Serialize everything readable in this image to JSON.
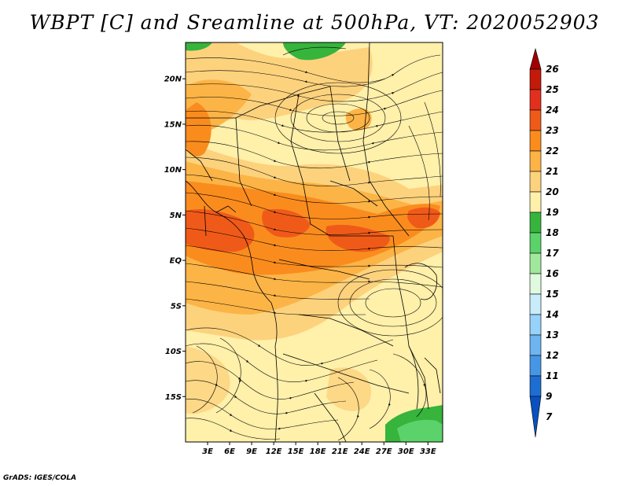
{
  "title": "WBPT [C] and Sreamline at 500hPa, VT: 2020052903",
  "credit": "GrADS: IGES/COLA",
  "map": {
    "lon_range": [
      0,
      35
    ],
    "lat_range": [
      -20,
      24
    ],
    "lat_ticks": [
      {
        "value": 20,
        "label": "20N"
      },
      {
        "value": 15,
        "label": "15N"
      },
      {
        "value": 10,
        "label": "10N"
      },
      {
        "value": 5,
        "label": "5N"
      },
      {
        "value": 0,
        "label": "EQ"
      },
      {
        "value": -5,
        "label": "5S"
      },
      {
        "value": -10,
        "label": "10S"
      },
      {
        "value": -15,
        "label": "15S"
      }
    ],
    "lon_ticks": [
      {
        "value": 3,
        "label": "3E"
      },
      {
        "value": 6,
        "label": "6E"
      },
      {
        "value": 9,
        "label": "9E"
      },
      {
        "value": 12,
        "label": "12E"
      },
      {
        "value": 15,
        "label": "15E"
      },
      {
        "value": 18,
        "label": "18E"
      },
      {
        "value": 21,
        "label": "21E"
      },
      {
        "value": 24,
        "label": "24E"
      },
      {
        "value": 27,
        "label": "27E"
      },
      {
        "value": 30,
        "label": "30E"
      },
      {
        "value": 33,
        "label": "33E"
      }
    ]
  },
  "colorbar": {
    "levels": [
      {
        "label": "26",
        "color": "#a00000"
      },
      {
        "label": "25",
        "color": "#c41a0a"
      },
      {
        "label": "24",
        "color": "#e1301e"
      },
      {
        "label": "23",
        "color": "#f05a19"
      },
      {
        "label": "22",
        "color": "#fa8c1e"
      },
      {
        "label": "21",
        "color": "#fcb446"
      },
      {
        "label": "20",
        "color": "#fdd27d"
      },
      {
        "label": "19",
        "color": "#fff0aa"
      },
      {
        "label": "18",
        "color": "#36b43c"
      },
      {
        "label": "17",
        "color": "#5cd26a"
      },
      {
        "label": "16",
        "color": "#a0e89c"
      },
      {
        "label": "15",
        "color": "#e0fae0"
      },
      {
        "label": "14",
        "color": "#c8ecfa"
      },
      {
        "label": "13",
        "color": "#96d2fa"
      },
      {
        "label": "12",
        "color": "#6eb4f0"
      },
      {
        "label": "11",
        "color": "#4696e6"
      },
      {
        "label": "9",
        "color": "#1e6ed2"
      },
      {
        "label": "7",
        "color": "#0a50be"
      }
    ]
  }
}
